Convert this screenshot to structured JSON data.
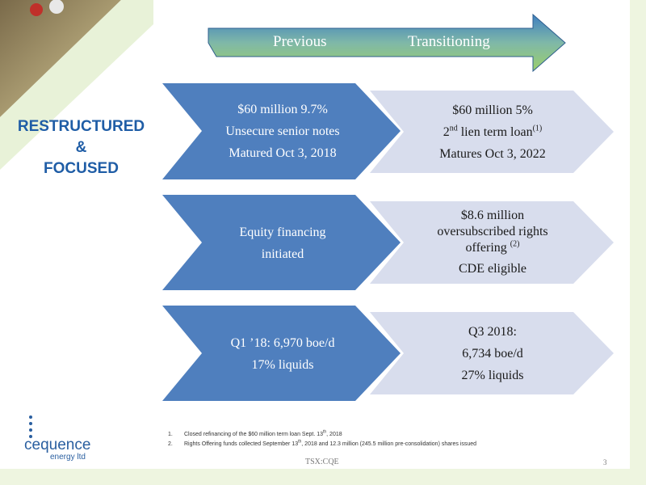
{
  "header": {
    "left": "Previous",
    "right": "Transitioning"
  },
  "side_title": [
    "RESTRUCTURED",
    "&",
    "FOCUSED"
  ],
  "rows": [
    {
      "left": [
        "$60 million 9.7%",
        "Unsecure senior notes",
        "Matured Oct 3, 2018"
      ],
      "right": [
        [
          "$60 million 5%"
        ],
        [
          "2",
          "nd",
          " lien term loan",
          "(1)"
        ],
        [
          "Matures Oct 3, 2022"
        ]
      ]
    },
    {
      "left": [
        "Equity financing",
        "initiated"
      ],
      "right": [
        [
          "$8.6 million"
        ],
        [
          "oversubscribed rights"
        ],
        [
          "offering ",
          "(2)"
        ],
        [
          "CDE eligible"
        ]
      ]
    },
    {
      "left": [
        "Q1 ’18: 6,970 boe/d",
        "17% liquids"
      ],
      "right": [
        [
          "Q3 2018:"
        ],
        [
          "6,734 boe/d"
        ],
        [
          "27% liquids"
        ]
      ]
    }
  ],
  "footnotes": [
    {
      "number": "1.",
      "text": [
        "Closed refinancing of the $60 million term loan Sept. 13",
        "th",
        ", 2018"
      ]
    },
    {
      "number": "2.",
      "text": [
        "Rights Offering funds collected September 13",
        "th",
        ", 2018 and 12.3 million (245.5 million pre-consolidation) shares issued"
      ]
    }
  ],
  "footer": {
    "ticker": "TSX:CQE",
    "page": "3"
  },
  "logo": {
    "name": "cequence",
    "sub": "energy ltd"
  }
}
